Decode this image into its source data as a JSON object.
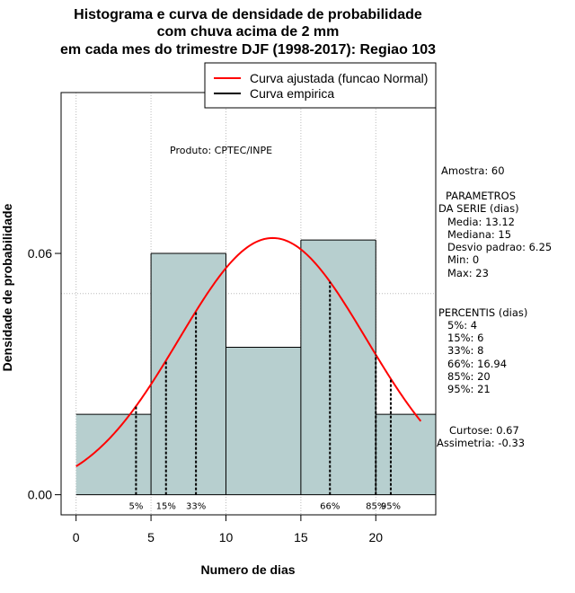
{
  "chart_data": {
    "type": "bar",
    "title": [
      "Histograma e curva de densidade de probabilidade",
      "com chuva acima de 2 mm",
      "em cada mes do trimestre DJF (1998-2017): Regiao 103"
    ],
    "xlabel": "Numero de dias",
    "ylabel": "Densidade de probabilidade",
    "xlim": [
      -1,
      24
    ],
    "ylim": [
      -0.005,
      0.1
    ],
    "x_ticks": [
      0,
      5,
      10,
      15,
      20
    ],
    "y_ticks": [
      0.0,
      0.06
    ],
    "y_tick_labels": [
      "0.00",
      "0.06"
    ],
    "grid": true,
    "grid_y": [
      0.05,
      0.1
    ],
    "grid_x": [
      0,
      5,
      10,
      15,
      20
    ],
    "bins": [
      {
        "start": 0,
        "end": 5,
        "density": 0.02
      },
      {
        "start": 5,
        "end": 10,
        "density": 0.06
      },
      {
        "start": 10,
        "end": 15,
        "density": 0.03667
      },
      {
        "start": 15,
        "end": 20,
        "density": 0.06333
      },
      {
        "start": 20,
        "end": 24,
        "density": 0.02
      }
    ],
    "bar_color": "#b7cfcf",
    "fit_curve": {
      "name": "Curva ajustada (funcao Normal)",
      "mean": 13.12,
      "sd": 6.25,
      "x_from": 0,
      "x_to": 23,
      "color": "#ff0000"
    },
    "empirical_curve": {
      "name": "Curva empirica",
      "color": "#000000"
    },
    "percentiles": [
      {
        "label": "5%",
        "value": 4
      },
      {
        "label": "15%",
        "value": 6
      },
      {
        "label": "33%",
        "value": 8
      },
      {
        "label": "66%",
        "value": 16.94
      },
      {
        "label": "85%",
        "value": 20
      },
      {
        "label": "95%",
        "value": 21
      }
    ],
    "legend_position": "top-right"
  },
  "product_label": "Produto: CPTEC/INPE",
  "sidebar": {
    "sample": "Amostra: 60",
    "params_title_1": "PARAMETROS",
    "params_title_2": "DA SERIE (dias)",
    "media": "Media: 13.12",
    "mediana": "Mediana: 15",
    "desvio": "Desvio padrao: 6.25",
    "min": "Min: 0",
    "max": "Max: 23",
    "percentis_title": "PERCENTIS (dias)",
    "p5": "5%: 4",
    "p15": "15%: 6",
    "p33": "33%: 8",
    "p66": "66%: 16.94",
    "p85": "85%: 20",
    "p95": "95%: 21",
    "curtose": "Curtose: 0.67",
    "assimetria": "Assimetria: -0.33"
  }
}
